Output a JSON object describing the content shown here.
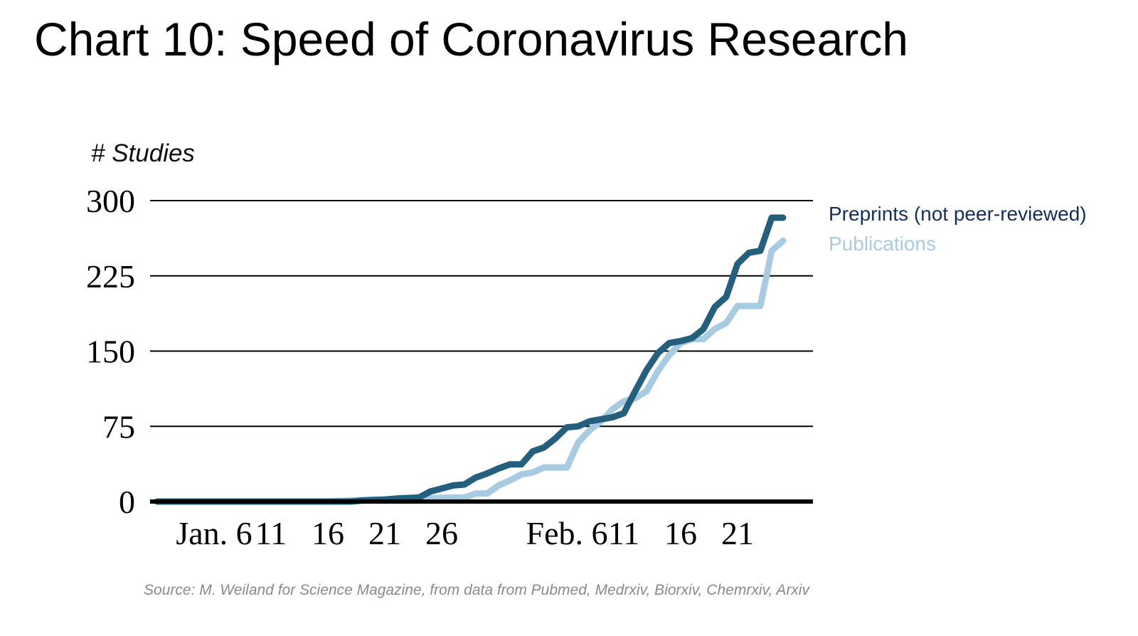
{
  "chart_data": {
    "type": "line",
    "title": "Chart 10: Speed of Coronavirus Research",
    "ylabel": "# Studies",
    "xlabel": "",
    "ylim": [
      0,
      300
    ],
    "yticks": [
      0,
      75,
      150,
      225,
      300
    ],
    "xlim": [
      0,
      57
    ],
    "xticks": [
      {
        "label": "Jan. 6",
        "x": 5
      },
      {
        "label": "11",
        "x": 10
      },
      {
        "label": "16",
        "x": 15
      },
      {
        "label": "21",
        "x": 20
      },
      {
        "label": "26",
        "x": 25
      },
      {
        "label": "Feb. 6",
        "x": 36
      },
      {
        "label": "11",
        "x": 41
      },
      {
        "label": "16",
        "x": 46
      },
      {
        "label": "21",
        "x": 51
      }
    ],
    "grid": true,
    "legend_position": "top-right",
    "series": [
      {
        "name": "Preprints (not peer-reviewed)",
        "color": "#245f7e",
        "points": [
          [
            0,
            0
          ],
          [
            15,
            0
          ],
          [
            17,
            0
          ],
          [
            18,
            1
          ],
          [
            20,
            2
          ],
          [
            21,
            3
          ],
          [
            23,
            4
          ],
          [
            24,
            10
          ],
          [
            25,
            13
          ],
          [
            26,
            16
          ],
          [
            27,
            17
          ],
          [
            28,
            24
          ],
          [
            29,
            28
          ],
          [
            30,
            33
          ],
          [
            31,
            37
          ],
          [
            32,
            37
          ],
          [
            33,
            50
          ],
          [
            34,
            54
          ],
          [
            35,
            63
          ],
          [
            36,
            74
          ],
          [
            37,
            75
          ],
          [
            38,
            80
          ],
          [
            40,
            84
          ],
          [
            41,
            88
          ],
          [
            42,
            110
          ],
          [
            43,
            131
          ],
          [
            44,
            148
          ],
          [
            45,
            158
          ],
          [
            46,
            160
          ],
          [
            47,
            163
          ],
          [
            48,
            172
          ],
          [
            49,
            194
          ],
          [
            50,
            204
          ],
          [
            51,
            237
          ],
          [
            52,
            248
          ],
          [
            53,
            250
          ],
          [
            54,
            283
          ],
          [
            55,
            283
          ]
        ]
      },
      {
        "name": "Publications",
        "color": "#a7cbe1",
        "points": [
          [
            0,
            0
          ],
          [
            15,
            0
          ],
          [
            17,
            1
          ],
          [
            19,
            2
          ],
          [
            22,
            2
          ],
          [
            23,
            3
          ],
          [
            26,
            4
          ],
          [
            27,
            4
          ],
          [
            28,
            8
          ],
          [
            29,
            8
          ],
          [
            30,
            16
          ],
          [
            31,
            21
          ],
          [
            32,
            27
          ],
          [
            33,
            29
          ],
          [
            34,
            34
          ],
          [
            36,
            34
          ],
          [
            37,
            59
          ],
          [
            38,
            71
          ],
          [
            39,
            80
          ],
          [
            40,
            92
          ],
          [
            41,
            100
          ],
          [
            42,
            103
          ],
          [
            43,
            110
          ],
          [
            44,
            130
          ],
          [
            45,
            146
          ],
          [
            46,
            158
          ],
          [
            47,
            162
          ],
          [
            48,
            162
          ],
          [
            49,
            172
          ],
          [
            50,
            178
          ],
          [
            51,
            195
          ],
          [
            53,
            195
          ],
          [
            54,
            250
          ],
          [
            55,
            260
          ]
        ]
      }
    ],
    "source": "Source: M. Weiland for Science Magazine, from data from Pubmed, Medrxiv, Biorxiv, Chemrxiv, Arxiv"
  }
}
